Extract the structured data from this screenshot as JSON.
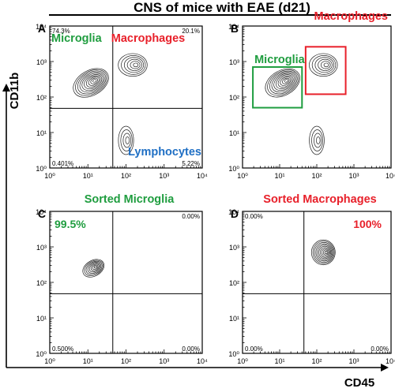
{
  "figure_title": "CNS of mice with EAE (d21)",
  "y_axis_label": "CD11b",
  "x_axis_label": "CD45",
  "colors": {
    "green": "#1f9d3f",
    "red": "#e8202a",
    "blue": "#1f6fc4",
    "contour": "#222222",
    "axis": "#000000"
  },
  "chart_data": [
    {
      "type": "contour",
      "panel": "A",
      "x_scale": "log",
      "y_scale": "log",
      "xlim": [
        1,
        10000
      ],
      "ylim": [
        1,
        10000
      ],
      "x_ticks": [
        "10⁰",
        "10¹",
        "10²",
        "10³",
        "10⁴"
      ],
      "y_ticks": [
        "10⁰",
        "10¹",
        "10²",
        "10³",
        "10⁴"
      ],
      "gates": {
        "x": 45,
        "y": 48
      },
      "quadrant_percents": {
        "top_left": "74.3%",
        "top_right": "20.1%",
        "bottom_left": "0.401%",
        "bottom_right": "5.22%"
      },
      "labels": [
        {
          "text": "Microglia",
          "color": "green"
        },
        {
          "text": "Macrophages",
          "color": "red"
        },
        {
          "text": "Lymphocytes",
          "color": "blue"
        }
      ],
      "populations": [
        {
          "cx": 12,
          "cy": 250,
          "sx": 0.5,
          "sy": 0.35,
          "rot": 30,
          "levels": 10
        },
        {
          "cx": 150,
          "cy": 800,
          "sx": 0.38,
          "sy": 0.32,
          "rot": 0,
          "levels": 6
        },
        {
          "cx": 100,
          "cy": 6,
          "sx": 0.2,
          "sy": 0.4,
          "rot": 0,
          "levels": 4
        }
      ]
    },
    {
      "type": "contour",
      "panel": "B",
      "x_scale": "log",
      "y_scale": "log",
      "xlim": [
        1,
        10000
      ],
      "ylim": [
        1,
        10000
      ],
      "x_ticks": [
        "10⁰",
        "10¹",
        "10²",
        "10³",
        "10⁴"
      ],
      "y_ticks": [
        "10⁰",
        "10¹",
        "10²",
        "10³",
        "10⁴"
      ],
      "gate_boxes": [
        {
          "label": "Microglia",
          "color": "green",
          "x": [
            1.9,
            40
          ],
          "y": [
            50,
            700
          ]
        },
        {
          "label": "Macrophages",
          "color": "red",
          "x": [
            50,
            600
          ],
          "y": [
            120,
            2600
          ]
        }
      ],
      "populations": [
        {
          "cx": 12,
          "cy": 250,
          "sx": 0.5,
          "sy": 0.35,
          "rot": 30,
          "levels": 10
        },
        {
          "cx": 150,
          "cy": 800,
          "sx": 0.38,
          "sy": 0.32,
          "rot": 0,
          "levels": 6
        },
        {
          "cx": 100,
          "cy": 6,
          "sx": 0.2,
          "sy": 0.4,
          "rot": 0,
          "levels": 4
        }
      ]
    },
    {
      "type": "contour",
      "panel": "C",
      "title": "Sorted Microglia",
      "title_color": "green",
      "x_scale": "log",
      "y_scale": "log",
      "xlim": [
        1,
        10000
      ],
      "ylim": [
        1,
        10000
      ],
      "x_ticks": [
        "10⁰",
        "10¹",
        "10²",
        "10³",
        "10⁴"
      ],
      "y_ticks": [
        "10⁰",
        "10¹",
        "10²",
        "10³",
        "10⁴"
      ],
      "gates": {
        "x": 45,
        "y": 48
      },
      "highlight_percent": "99.5%",
      "quadrant_percents": {
        "top_left": "",
        "top_right": "0.00%",
        "bottom_left": "0.500%",
        "bottom_right": "0.00%"
      },
      "populations": [
        {
          "cx": 14,
          "cy": 250,
          "sx": 0.3,
          "sy": 0.22,
          "rot": 30,
          "levels": 8
        }
      ]
    },
    {
      "type": "contour",
      "panel": "D",
      "title": "Sorted Macrophages",
      "title_color": "red",
      "x_scale": "log",
      "y_scale": "log",
      "xlim": [
        1,
        10000
      ],
      "ylim": [
        1,
        10000
      ],
      "x_ticks": [
        "10⁰",
        "10¹",
        "10²",
        "10³",
        "10⁴"
      ],
      "y_ticks": [
        "10⁰",
        "10¹",
        "10²",
        "10³",
        "10⁴"
      ],
      "gates": {
        "x": 45,
        "y": 48
      },
      "highlight_percent": "100%",
      "quadrant_percents": {
        "top_left": "0.00%",
        "top_right": "",
        "bottom_left": "0.00%",
        "bottom_right": "0.00%"
      },
      "populations": [
        {
          "cx": 150,
          "cy": 700,
          "sx": 0.32,
          "sy": 0.35,
          "rot": 0,
          "levels": 10
        }
      ]
    }
  ]
}
